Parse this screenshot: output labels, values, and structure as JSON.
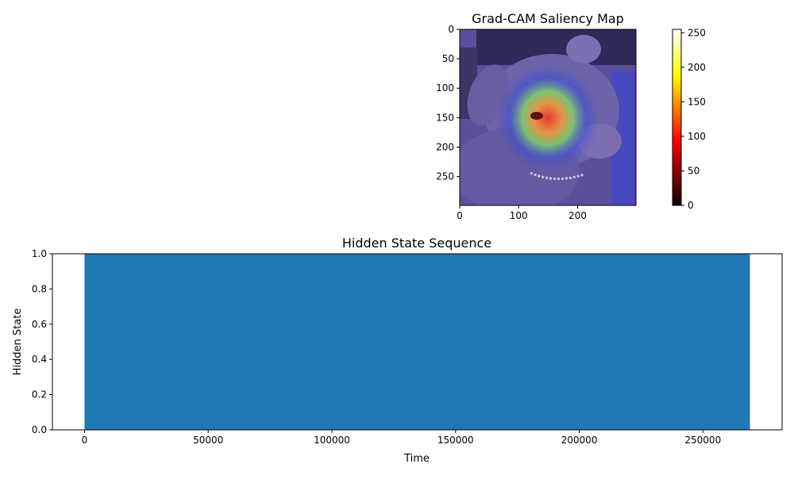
{
  "chart_data": [
    {
      "type": "heatmap",
      "title": "Grad-CAM Saliency Map",
      "xlabel": "",
      "ylabel": "",
      "xlim": [
        0,
        299
      ],
      "ylim": [
        299,
        0
      ],
      "x_ticks": [
        0,
        100,
        200
      ],
      "y_ticks": [
        0,
        50,
        100,
        150,
        200,
        250
      ],
      "hotspot": {
        "center_x": 138,
        "center_y": 150,
        "peak_value": 120
      },
      "colorbar": {
        "colormap": "hot",
        "range": [
          0,
          255
        ],
        "ticks": [
          0,
          50,
          100,
          150,
          200,
          250
        ]
      },
      "overlay_colors": {
        "background": "#5b4f9c",
        "outer": "#3b4fd8",
        "mid": "#7dd36b",
        "inner": "#f3e04a",
        "core": "#e8362c"
      }
    },
    {
      "type": "bar",
      "title": "Hidden State Sequence",
      "xlabel": "Time",
      "ylabel": "Hidden State",
      "xlim": [
        -13000,
        282000
      ],
      "ylim": [
        0,
        1
      ],
      "x_ticks": [
        0,
        50000,
        100000,
        150000,
        200000,
        250000
      ],
      "y_ticks": [
        0.0,
        0.2,
        0.4,
        0.6,
        0.8,
        1.0
      ],
      "bar": {
        "x_start": 0,
        "x_end": 269000,
        "value": 1.0,
        "color": "#1f77b4"
      }
    }
  ]
}
